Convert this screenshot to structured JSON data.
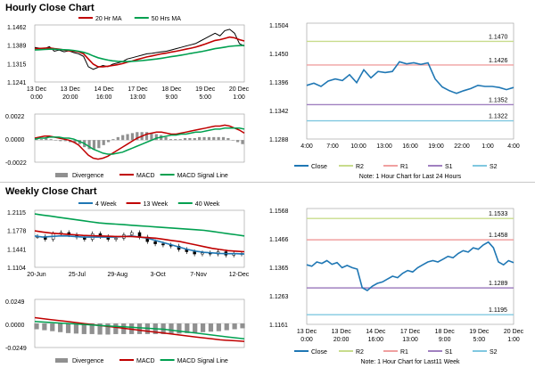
{
  "sections": {
    "hourly_title": "Hourly Close Chart",
    "weekly_title": "Weekly Close Chart"
  },
  "colors": {
    "close": "#1f77b4",
    "ma_short": "#c00000",
    "ma_long": "#00a050",
    "week40": "#00a050",
    "r2": "#c8dc8c",
    "r1": "#f0a0a0",
    "s1": "#a080c0",
    "s2": "#80c8e0",
    "divergence": "#909090"
  },
  "chart_data": [
    {
      "id": "hourly-ma",
      "type": "line",
      "legend": [
        "20 Hr MA",
        "50 Hrs MA"
      ],
      "ylim": [
        1.1241,
        1.1462
      ],
      "yticks": [
        "1.1462",
        "1.1389",
        "1.1315",
        "1.1241"
      ],
      "xticks": [
        "13 Dec\n0:00",
        "13 Dec\n20:00",
        "14 Dec\n16:00",
        "17 Dec\n13:00",
        "18 Dec\n9:00",
        "19 Dec\n5:00",
        "20 Dec\n1:00"
      ],
      "series": [
        {
          "name": "Close",
          "values": [
            1.1375,
            1.1372,
            1.137,
            1.1378,
            1.136,
            1.1365,
            1.1358,
            1.1362,
            1.1355,
            1.135,
            1.134,
            1.13,
            1.129,
            1.1298,
            1.1305,
            1.13,
            1.131,
            1.1315,
            1.132,
            1.133,
            1.1335,
            1.134,
            1.1345,
            1.135,
            1.1352,
            1.1355,
            1.1358,
            1.136,
            1.1365,
            1.137,
            1.1375,
            1.138,
            1.1385,
            1.139,
            1.14,
            1.141,
            1.142,
            1.143,
            1.142,
            1.144,
            1.1445,
            1.143,
            1.139,
            1.138
          ]
        },
        {
          "name": "20 Hr MA",
          "values": [
            1.137,
            1.1371,
            1.1372,
            1.1373,
            1.137,
            1.1368,
            1.1365,
            1.1362,
            1.136,
            1.1358,
            1.135,
            1.133,
            1.131,
            1.13,
            1.13,
            1.1302,
            1.1305,
            1.1308,
            1.1312,
            1.1318,
            1.1322,
            1.1328,
            1.1333,
            1.1338,
            1.1342,
            1.1346,
            1.135,
            1.1353,
            1.1357,
            1.136,
            1.1364,
            1.1368,
            1.1372,
            1.1376,
            1.1382,
            1.1388,
            1.1395,
            1.1402,
            1.1405,
            1.141,
            1.1415,
            1.1412,
            1.1405,
            1.14
          ]
        },
        {
          "name": "50 Hrs MA",
          "values": [
            1.1365,
            1.1366,
            1.1367,
            1.1368,
            1.1368,
            1.1367,
            1.1366,
            1.1365,
            1.1363,
            1.136,
            1.1356,
            1.135,
            1.1342,
            1.1335,
            1.133,
            1.1326,
            1.1323,
            1.1321,
            1.132,
            1.132,
            1.1321,
            1.1322,
            1.1324,
            1.1326,
            1.1328,
            1.133,
            1.1333,
            1.1336,
            1.1339,
            1.1342,
            1.1345,
            1.1348,
            1.1352,
            1.1355,
            1.1358,
            1.1362,
            1.1366,
            1.137,
            1.1373,
            1.1376,
            1.1379,
            1.1381,
            1.1382,
            1.1383
          ]
        }
      ]
    },
    {
      "id": "hourly-macd",
      "type": "line",
      "legend": [
        "Divergence",
        "MACD",
        "MACD Signal Line"
      ],
      "ylim": [
        -0.0022,
        0.0026
      ],
      "yticks": [
        "0.0022",
        "0.0000",
        "-0.0022"
      ],
      "series": [
        {
          "name": "MACD",
          "values": [
            0.0002,
            0.0003,
            0.0004,
            0.0004,
            0.0003,
            0.0002,
            0.0001,
            0.0,
            -0.0002,
            -0.0005,
            -0.001,
            -0.0015,
            -0.0018,
            -0.0019,
            -0.0018,
            -0.0016,
            -0.0013,
            -0.001,
            -0.0007,
            -0.0004,
            -0.0001,
            0.0002,
            0.0004,
            0.0006,
            0.0007,
            0.0008,
            0.0008,
            0.0007,
            0.0006,
            0.0006,
            0.0007,
            0.0008,
            0.0009,
            0.001,
            0.0011,
            0.0012,
            0.0013,
            0.0014,
            0.0014,
            0.0015,
            0.0014,
            0.0012,
            0.001,
            0.0007
          ]
        },
        {
          "name": "MACD Signal Line",
          "values": [
            0.0001,
            0.0002,
            0.0002,
            0.0003,
            0.0003,
            0.0003,
            0.0002,
            0.0002,
            0.0001,
            -0.0001,
            -0.0003,
            -0.0006,
            -0.0009,
            -0.0011,
            -0.0013,
            -0.0014,
            -0.0014,
            -0.0013,
            -0.0012,
            -0.001,
            -0.0008,
            -0.0006,
            -0.0004,
            -0.0002,
            0.0,
            0.0002,
            0.0003,
            0.0004,
            0.0005,
            0.0005,
            0.0006,
            0.0006,
            0.0007,
            0.0008,
            0.0008,
            0.0009,
            0.001,
            0.0011,
            0.0011,
            0.0012,
            0.0012,
            0.0012,
            0.0012,
            0.0011
          ]
        },
        {
          "name": "Divergence",
          "values": [
            0.0001,
            0.0001,
            0.0002,
            0.0001,
            0.0,
            -0.0001,
            -0.0001,
            -0.0002,
            -0.0003,
            -0.0004,
            -0.0007,
            -0.0009,
            -0.0009,
            -0.0008,
            -0.0005,
            -0.0002,
            0.0001,
            0.0003,
            0.0005,
            0.0006,
            0.0007,
            0.0008,
            0.0008,
            0.0008,
            0.0007,
            0.0006,
            0.0005,
            0.0003,
            0.0001,
            0.0001,
            0.0001,
            0.0002,
            0.0002,
            0.0002,
            0.0003,
            0.0003,
            0.0003,
            0.0003,
            0.0003,
            0.0003,
            0.0002,
            0.0,
            -0.0002,
            -0.0004
          ]
        }
      ]
    },
    {
      "id": "hourly-close",
      "type": "line",
      "ylim": [
        1.1288,
        1.1504
      ],
      "yticks": [
        "1.1504",
        "1.1450",
        "1.1396",
        "1.1342",
        "1.1288"
      ],
      "xticks": [
        "4:00",
        "7:00",
        "10:00",
        "13:00",
        "16:00",
        "19:00",
        "22:00",
        "1:00",
        "4:00"
      ],
      "levels": [
        {
          "name": "R2",
          "value": 1.147,
          "label": "1.1470"
        },
        {
          "name": "R1",
          "value": 1.1426,
          "label": "1.1426"
        },
        {
          "name": "S1",
          "value": 1.1352,
          "label": "1.1352"
        },
        {
          "name": "S2",
          "value": 1.1322,
          "label": "1.1322"
        }
      ],
      "series": [
        {
          "name": "Close",
          "values": [
            1.1388,
            1.1392,
            1.1386,
            1.1396,
            1.14,
            1.1397,
            1.1408,
            1.1393,
            1.1417,
            1.1402,
            1.1414,
            1.1412,
            1.1414,
            1.1432,
            1.1428,
            1.143,
            1.1427,
            1.143,
            1.14,
            1.1385,
            1.1378,
            1.1373,
            1.1378,
            1.1382,
            1.1388,
            1.1386,
            1.1386,
            1.1384,
            1.138,
            1.1384
          ]
        }
      ],
      "legend": [
        "Close",
        "R2",
        "R1",
        "S1",
        "S2"
      ],
      "note": "Note: 1 Hour Chart for Last 24 Hours"
    },
    {
      "id": "weekly-ma",
      "type": "line",
      "legend": [
        "4 Week",
        "13 Week",
        "40 Week"
      ],
      "ylim": [
        1.1104,
        1.2115
      ],
      "yticks": [
        "1.2115",
        "1.1778",
        "1.1441",
        "1.1104"
      ],
      "xticks": [
        "20-Jun",
        "25-Jul",
        "29-Aug",
        "3-Oct",
        "7-Nov",
        "12-Dec"
      ],
      "series": [
        {
          "name": "Close",
          "values": [
            1.165,
            1.16,
            1.17,
            1.172,
            1.168,
            1.164,
            1.16,
            1.17,
            1.165,
            1.16,
            1.162,
            1.168,
            1.172,
            1.164,
            1.156,
            1.152,
            1.15,
            1.148,
            1.142,
            1.138,
            1.134,
            1.136,
            1.134,
            1.138,
            1.132,
            1.135,
            1.134
          ]
        },
        {
          "name": "4 Week",
          "values": [
            1.166,
            1.164,
            1.165,
            1.166,
            1.166,
            1.165,
            1.164,
            1.164,
            1.164,
            1.164,
            1.164,
            1.165,
            1.166,
            1.164,
            1.162,
            1.158,
            1.154,
            1.15,
            1.146,
            1.142,
            1.139,
            1.137,
            1.136,
            1.135,
            1.1345,
            1.1345,
            1.134
          ]
        },
        {
          "name": "13 Week",
          "values": [
            1.175,
            1.173,
            1.171,
            1.17,
            1.169,
            1.168,
            1.167,
            1.1665,
            1.166,
            1.1655,
            1.165,
            1.165,
            1.165,
            1.164,
            1.163,
            1.162,
            1.16,
            1.158,
            1.156,
            1.153,
            1.15,
            1.147,
            1.144,
            1.142,
            1.14,
            1.139,
            1.138
          ]
        },
        {
          "name": "40 Week",
          "values": [
            1.205,
            1.203,
            1.201,
            1.199,
            1.197,
            1.195,
            1.193,
            1.191,
            1.189,
            1.188,
            1.187,
            1.186,
            1.185,
            1.184,
            1.183,
            1.182,
            1.181,
            1.18,
            1.179,
            1.178,
            1.177,
            1.176,
            1.174,
            1.172,
            1.17,
            1.168,
            1.166
          ]
        }
      ]
    },
    {
      "id": "weekly-macd",
      "type": "line",
      "legend": [
        "Divergence",
        "MACD",
        "MACD Signal Line"
      ],
      "ylim": [
        -0.0249,
        0.0249
      ],
      "yticks": [
        "0.0249",
        "0.0000",
        "-0.0249"
      ],
      "series": [
        {
          "name": "MACD",
          "values": [
            0.006,
            0.005,
            0.004,
            0.003,
            0.002,
            0.001,
            0.0,
            -0.001,
            -0.002,
            -0.003,
            -0.004,
            -0.005,
            -0.006,
            -0.007,
            -0.008,
            -0.009,
            -0.01,
            -0.011,
            -0.012,
            -0.013,
            -0.014,
            -0.015,
            -0.016,
            -0.017,
            -0.0175,
            -0.018,
            -0.0185
          ]
        },
        {
          "name": "MACD Signal Line",
          "values": [
            0.002,
            0.0015,
            0.001,
            0.0005,
            0.0,
            -0.0005,
            -0.001,
            -0.0015,
            -0.002,
            -0.0025,
            -0.003,
            -0.0035,
            -0.004,
            -0.0045,
            -0.005,
            -0.0055,
            -0.006,
            -0.007,
            -0.008,
            -0.009,
            -0.01,
            -0.011,
            -0.012,
            -0.013,
            -0.014,
            -0.015,
            -0.016
          ]
        },
        {
          "name": "Divergence",
          "values": [
            -0.006,
            -0.007,
            -0.008,
            -0.009,
            -0.01,
            -0.0105,
            -0.011,
            -0.011,
            -0.0115,
            -0.0115,
            -0.011,
            -0.011,
            -0.011,
            -0.011,
            -0.011,
            -0.011,
            -0.011,
            -0.011,
            -0.0105,
            -0.01,
            -0.0095,
            -0.009,
            -0.0085,
            -0.008,
            -0.007,
            -0.006,
            -0.005
          ]
        }
      ]
    },
    {
      "id": "weekly-close",
      "type": "line",
      "ylim": [
        1.1161,
        1.1568
      ],
      "yticks": [
        "1.1568",
        "1.1466",
        "1.1365",
        "1.1263",
        "1.1161"
      ],
      "xticks": [
        "13 Dec\n0:00",
        "13 Dec\n20:00",
        "14 Dec\n16:00",
        "17 Dec\n13:00",
        "18 Dec\n9:00",
        "19 Dec\n5:00",
        "20 Dec\n1:00"
      ],
      "levels": [
        {
          "name": "R2",
          "value": 1.1533,
          "label": "1.1533"
        },
        {
          "name": "R1",
          "value": 1.1458,
          "label": "1.1458"
        },
        {
          "name": "S1",
          "value": 1.1289,
          "label": "1.1289"
        },
        {
          "name": "S2",
          "value": 1.1195,
          "label": "1.1195"
        }
      ],
      "series": [
        {
          "name": "Close",
          "values": [
            1.137,
            1.1365,
            1.138,
            1.1375,
            1.1385,
            1.1372,
            1.1378,
            1.136,
            1.1368,
            1.136,
            1.1355,
            1.129,
            1.128,
            1.1295,
            1.1305,
            1.131,
            1.132,
            1.133,
            1.1325,
            1.134,
            1.135,
            1.1345,
            1.136,
            1.137,
            1.138,
            1.1385,
            1.138,
            1.139,
            1.14,
            1.1395,
            1.141,
            1.142,
            1.1415,
            1.143,
            1.1425,
            1.144,
            1.145,
            1.143,
            1.138,
            1.137,
            1.1385,
            1.1378
          ]
        }
      ],
      "legend": [
        "Close",
        "R2",
        "R1",
        "S1",
        "S2"
      ],
      "note": "Note: 1 Hour Chart for Last11 Week"
    }
  ]
}
